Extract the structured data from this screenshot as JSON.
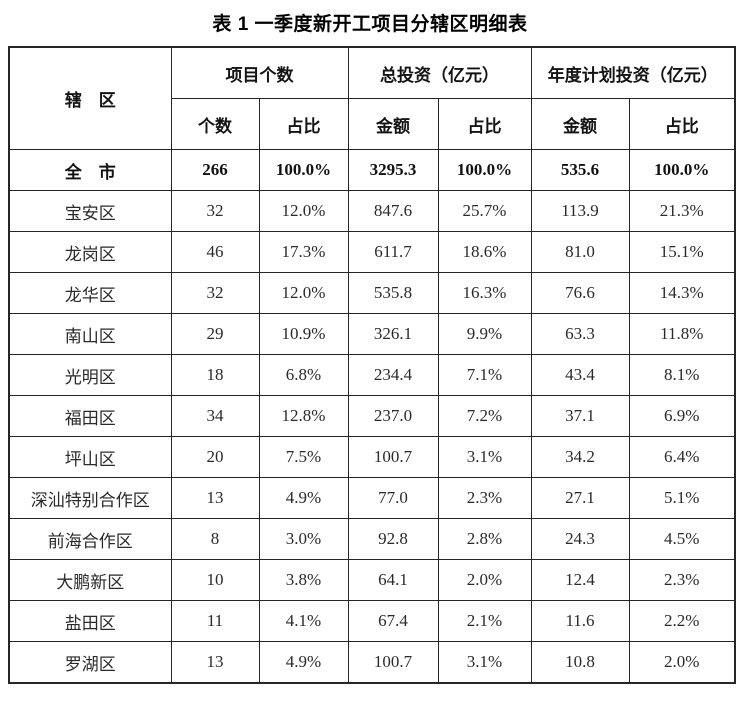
{
  "page": {
    "title": "表 1 一季度新开工项目分辖区明细表"
  },
  "colors": {
    "background": "#ffffff",
    "border": "#262626",
    "text": "#2a2a2a",
    "title_text": "#000000"
  },
  "table": {
    "group_headers": {
      "district": "辖　区",
      "project_count": "项目个数",
      "total_investment": "总投资（亿元）",
      "annual_plan_investment": "年度计划投资（亿元）"
    },
    "sub_headers": {
      "count": "个数",
      "count_share": "占比",
      "total_amount": "金额",
      "total_share": "占比",
      "plan_amount": "金额",
      "plan_share": "占比"
    },
    "rows": [
      {
        "district": "全　市",
        "bold": true,
        "cells": [
          "266",
          "100.0%",
          "3295.3",
          "100.0%",
          "535.6",
          "100.0%"
        ]
      },
      {
        "district": "宝安区",
        "bold": false,
        "cells": [
          "32",
          "12.0%",
          "847.6",
          "25.7%",
          "113.9",
          "21.3%"
        ]
      },
      {
        "district": "龙岗区",
        "bold": false,
        "cells": [
          "46",
          "17.3%",
          "611.7",
          "18.6%",
          "81.0",
          "15.1%"
        ]
      },
      {
        "district": "龙华区",
        "bold": false,
        "cells": [
          "32",
          "12.0%",
          "535.8",
          "16.3%",
          "76.6",
          "14.3%"
        ]
      },
      {
        "district": "南山区",
        "bold": false,
        "cells": [
          "29",
          "10.9%",
          "326.1",
          "9.9%",
          "63.3",
          "11.8%"
        ]
      },
      {
        "district": "光明区",
        "bold": false,
        "cells": [
          "18",
          "6.8%",
          "234.4",
          "7.1%",
          "43.4",
          "8.1%"
        ]
      },
      {
        "district": "福田区",
        "bold": false,
        "cells": [
          "34",
          "12.8%",
          "237.0",
          "7.2%",
          "37.1",
          "6.9%"
        ]
      },
      {
        "district": "坪山区",
        "bold": false,
        "cells": [
          "20",
          "7.5%",
          "100.7",
          "3.1%",
          "34.2",
          "6.4%"
        ]
      },
      {
        "district": "深汕特别合作区",
        "bold": false,
        "cells": [
          "13",
          "4.9%",
          "77.0",
          "2.3%",
          "27.1",
          "5.1%"
        ]
      },
      {
        "district": "前海合作区",
        "bold": false,
        "cells": [
          "8",
          "3.0%",
          "92.8",
          "2.8%",
          "24.3",
          "4.5%"
        ]
      },
      {
        "district": "大鹏新区",
        "bold": false,
        "cells": [
          "10",
          "3.8%",
          "64.1",
          "2.0%",
          "12.4",
          "2.3%"
        ]
      },
      {
        "district": "盐田区",
        "bold": false,
        "cells": [
          "11",
          "4.1%",
          "67.4",
          "2.1%",
          "11.6",
          "2.2%"
        ]
      },
      {
        "district": "罗湖区",
        "bold": false,
        "cells": [
          "13",
          "4.9%",
          "100.7",
          "3.1%",
          "10.8",
          "2.0%"
        ]
      }
    ]
  }
}
